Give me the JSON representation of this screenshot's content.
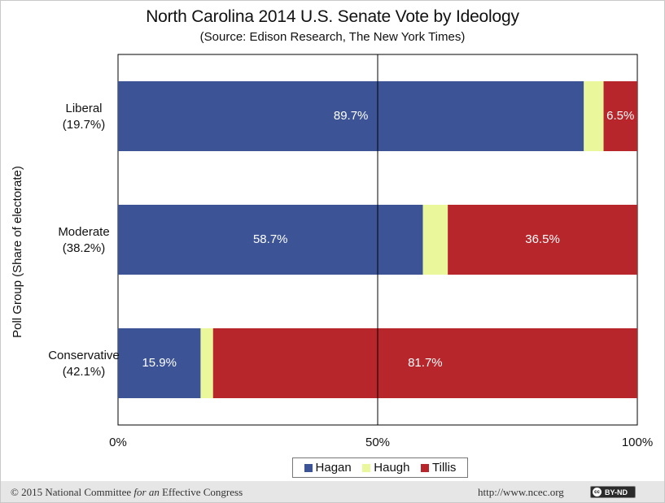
{
  "chart_data": {
    "type": "bar",
    "orientation": "horizontal",
    "stacked": true,
    "title": "North Carolina 2014 U.S. Senate Vote by Ideology",
    "subtitle": "(Source: Edison Research, The New York Times)",
    "ylabel": "Poll Group (Share of electorate)",
    "xlabel": "",
    "xlim": [
      0,
      100
    ],
    "x_ticks": [
      "0%",
      "50%",
      "100%"
    ],
    "grid": "vertical line at 50%",
    "legend_position": "bottom",
    "categories": [
      {
        "name": "Liberal",
        "share": "(19.7%)"
      },
      {
        "name": "Moderate",
        "share": "(38.2%)"
      },
      {
        "name": "Conservative",
        "share": "(42.1%)"
      }
    ],
    "series": [
      {
        "name": "Hagan",
        "color": "#3c5496",
        "values": [
          89.7,
          58.7,
          15.9
        ],
        "labels": [
          "89.7%",
          "58.7%",
          "15.9%"
        ]
      },
      {
        "name": "Haugh",
        "color": "#eaf79a",
        "values": [
          3.8,
          4.8,
          2.4
        ],
        "labels": [
          "",
          "",
          ""
        ]
      },
      {
        "name": "Tillis",
        "color": "#b7262b",
        "values": [
          6.5,
          36.5,
          81.7
        ],
        "labels": [
          "6.5%",
          "36.5%",
          "81.7%"
        ]
      }
    ]
  },
  "legend": {
    "items": [
      {
        "label": "Hagan",
        "color": "#3c5496"
      },
      {
        "label": "Haugh",
        "color": "#eaf79a"
      },
      {
        "label": "Tillis",
        "color": "#b7262b"
      }
    ]
  },
  "footer": {
    "copyright_prefix": "© 2015 National Committee ",
    "copyright_italic": "for an",
    "copyright_suffix": " Effective Congress",
    "url": "http://www.ncec.org",
    "license": "BY-ND",
    "license_icon": "cc"
  }
}
